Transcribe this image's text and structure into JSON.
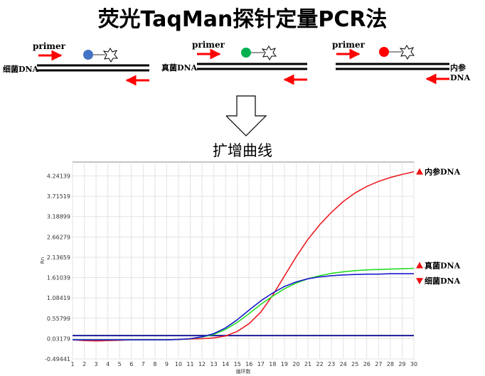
{
  "title": "荧光TaqMan探针定量PCR法",
  "probe_panels": [
    {
      "primer_label": "primer",
      "dna_label": "细菌DNA",
      "probe_color": "#4472c4"
    },
    {
      "primer_label": "primer",
      "dna_label": "真菌DNA",
      "probe_color": "#00b050"
    },
    {
      "primer_label": "primer",
      "dna_label": "内参DNA",
      "probe_color": "#ff0000"
    }
  ],
  "subtitle": "扩增曲线",
  "chart_data": {
    "type": "line",
    "title": "",
    "xlabel": "循环数",
    "ylabel": "Rn",
    "x": [
      1,
      2,
      3,
      4,
      5,
      6,
      7,
      8,
      9,
      10,
      11,
      12,
      13,
      14,
      15,
      16,
      17,
      18,
      19,
      20,
      21,
      22,
      23,
      24,
      25,
      26,
      27,
      28,
      29,
      30
    ],
    "xlim": [
      1,
      30
    ],
    "ylim": [
      -0.49441,
      4.6
    ],
    "ytick_labels": [
      "-0.49441",
      "0.03179",
      "0.55799",
      "1.08419",
      "1.61039",
      "2.13659",
      "2.66279",
      "3.18899",
      "3.71519",
      "4.24139"
    ],
    "ytick_values": [
      -0.49441,
      0.03179,
      0.55799,
      1.08419,
      1.61039,
      2.13659,
      2.66279,
      3.18899,
      3.71519,
      4.24139
    ],
    "grid": true,
    "series": [
      {
        "name": "内参DNA",
        "color": "#ee1c25",
        "values": [
          0.0,
          -0.02,
          -0.03,
          -0.02,
          -0.01,
          0.0,
          0.0,
          0.0,
          0.0,
          0.01,
          0.02,
          0.03,
          0.05,
          0.1,
          0.22,
          0.42,
          0.72,
          1.15,
          1.65,
          2.15,
          2.6,
          2.98,
          3.3,
          3.58,
          3.8,
          3.97,
          4.1,
          4.2,
          4.28,
          4.35
        ]
      },
      {
        "name": "真菌DNA",
        "color": "#22dd22",
        "values": [
          0.0,
          0.0,
          0.0,
          0.0,
          0.0,
          0.0,
          0.0,
          0.0,
          0.0,
          0.01,
          0.03,
          0.07,
          0.14,
          0.27,
          0.45,
          0.68,
          0.92,
          1.13,
          1.32,
          1.47,
          1.58,
          1.66,
          1.72,
          1.76,
          1.79,
          1.81,
          1.82,
          1.83,
          1.84,
          1.85
        ]
      },
      {
        "name": "细菌DNA",
        "color": "#1a1acc",
        "values": [
          0.0,
          0.0,
          0.0,
          0.0,
          0.0,
          0.0,
          0.0,
          0.0,
          0.0,
          0.01,
          0.03,
          0.08,
          0.16,
          0.31,
          0.52,
          0.77,
          1.01,
          1.21,
          1.38,
          1.5,
          1.58,
          1.63,
          1.66,
          1.68,
          1.69,
          1.7,
          1.7,
          1.71,
          1.71,
          1.71
        ]
      }
    ],
    "threshold": {
      "value": 0.11,
      "color": "#1a1a99"
    },
    "end_labels": [
      {
        "text": "内参DNA",
        "series": 0,
        "marker": "up"
      },
      {
        "text": "真菌DNA",
        "series": 1,
        "marker": "up"
      },
      {
        "text": "细菌DNA",
        "series": 2,
        "marker": "down"
      }
    ]
  }
}
